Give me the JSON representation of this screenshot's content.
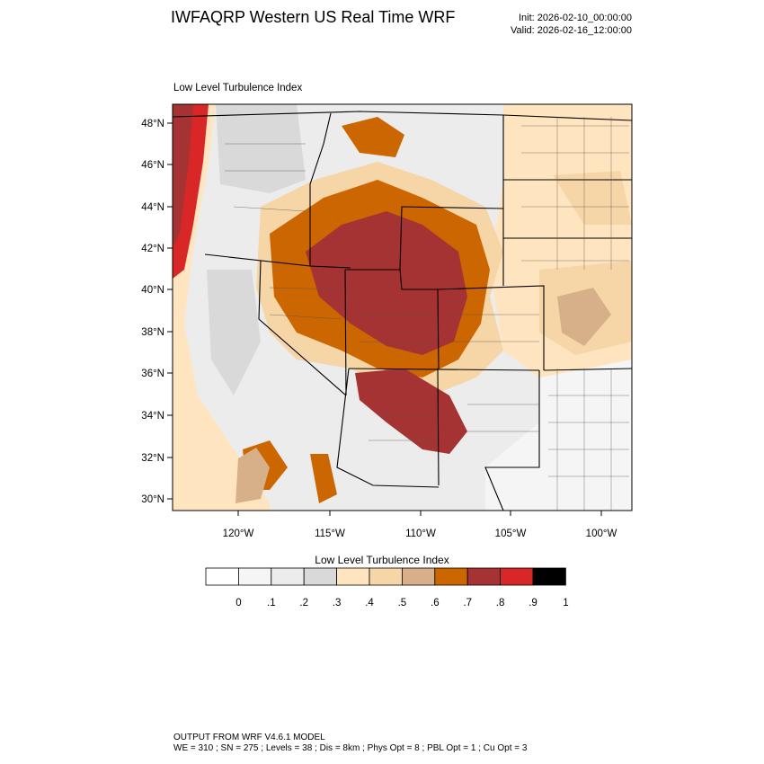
{
  "header": {
    "title": "IWFAQRP Western US Real Time WRF",
    "init": "Init: 2026-02-10_00:00:00",
    "valid": "Valid: 2026-02-16_12:00:00"
  },
  "plot": {
    "label": "Low Level Turbulence Index",
    "lat_ticks": [
      "30°N",
      "32°N",
      "34°N",
      "36°N",
      "38°N",
      "40°N",
      "42°N",
      "44°N",
      "46°N",
      "48°N"
    ],
    "lon_ticks": [
      "120°W",
      "115°W",
      "110°W",
      "105°W",
      "100°W"
    ]
  },
  "colorbar": {
    "title": "Low Level Turbulence Index",
    "colors": [
      "#ffffff",
      "#f5f5f5",
      "#ececec",
      "#d9d9d9",
      "#ffe5bf",
      "#f6d5a7",
      "#d7b08a",
      "#cc6600",
      "#a63333",
      "#d92626",
      "#000000"
    ],
    "labels": [
      "0",
      ".1",
      ".2",
      ".3",
      ".4",
      ".5",
      ".6",
      ".7",
      ".8",
      ".9",
      "1"
    ]
  },
  "footer": {
    "line1": "OUTPUT FROM WRF V4.6.1 MODEL",
    "line2": "WE = 310 ; SN = 275 ; Levels = 38 ; Dis = 8km ; Phys Opt = 8 ; PBL Opt = 1 ; Cu Opt = 3"
  }
}
